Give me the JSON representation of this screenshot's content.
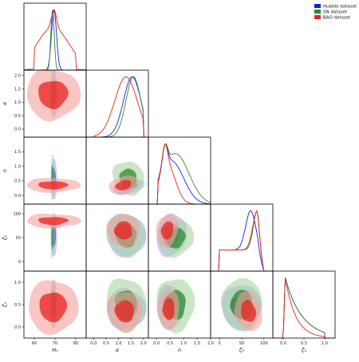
{
  "chart_data": {
    "type": "corner",
    "parameters": [
      "H_0",
      "α",
      "n",
      "ζ_0",
      "ζ_1"
    ],
    "axis_labels": [
      "H₀",
      "α",
      "n",
      "ζ₀",
      "ζ₁"
    ],
    "ranges": {
      "H0": [
        55,
        85
      ],
      "alpha": [
        -0.3,
        2.2
      ],
      "n": [
        -0.3,
        2.0
      ],
      "zeta0": [
        -20,
        120
      ],
      "zeta1": [
        -0.25,
        1.25
      ]
    },
    "x_tick_labels": {
      "H0": [
        "60",
        "70",
        "80"
      ],
      "alpha": [
        "0.0",
        "0.5",
        "1.0",
        "1.5",
        "2.0"
      ],
      "n": [
        "0.0",
        "0.5",
        "1.0",
        "1.5",
        "2.0"
      ],
      "zeta0": [
        "0",
        "50",
        "100"
      ],
      "zeta1": [
        "0.0",
        "0.5",
        "1.0"
      ]
    },
    "y_tick_labels": {
      "alpha": [
        "0.0",
        "0.5",
        "1.0",
        "1.5",
        "2.0"
      ],
      "n": [
        "0.0",
        "0.5",
        "1.0",
        "1.5"
      ],
      "zeta0": [
        "0",
        "50",
        "100"
      ],
      "zeta1": [
        "0.0",
        "0.5",
        "1.0"
      ]
    },
    "legend": {
      "placement": "top-right",
      "entries": [
        {
          "label": "Hubble dataset",
          "color": "#1a1aee"
        },
        {
          "label": "SN dataset",
          "color": "#2e8b2e"
        },
        {
          "label": "BAO dataset",
          "color": "#e8221d"
        }
      ]
    },
    "series": [
      {
        "name": "Hubble dataset",
        "color": "#1a1aee",
        "means": {
          "H0": 69.5,
          "alpha": 1.55,
          "n": 0.55,
          "zeta0": 55,
          "zeta1": 0.4
        },
        "sigmas": {
          "H0": 1.2,
          "alpha": 0.35,
          "n": 0.45,
          "zeta0": 28,
          "zeta1": 0.3
        }
      },
      {
        "name": "SN dataset",
        "color": "#2e8b2e",
        "means": {
          "H0": 68.8,
          "alpha": 1.6,
          "n": 0.7,
          "zeta0": 70,
          "zeta1": 0.45
        },
        "sigmas": {
          "H0": 0.8,
          "alpha": 0.3,
          "n": 0.5,
          "zeta0": 22,
          "zeta1": 0.32
        }
      },
      {
        "name": "BAO dataset",
        "color": "#e8221d",
        "means": {
          "H0": 69,
          "alpha": 1.3,
          "n": 0.4,
          "zeta0": 70,
          "zeta1": 0.3
        },
        "sigmas": {
          "H0": 8,
          "alpha": 0.45,
          "n": 0.3,
          "zeta0": 25,
          "zeta1": 0.25
        }
      }
    ],
    "grid": false
  }
}
